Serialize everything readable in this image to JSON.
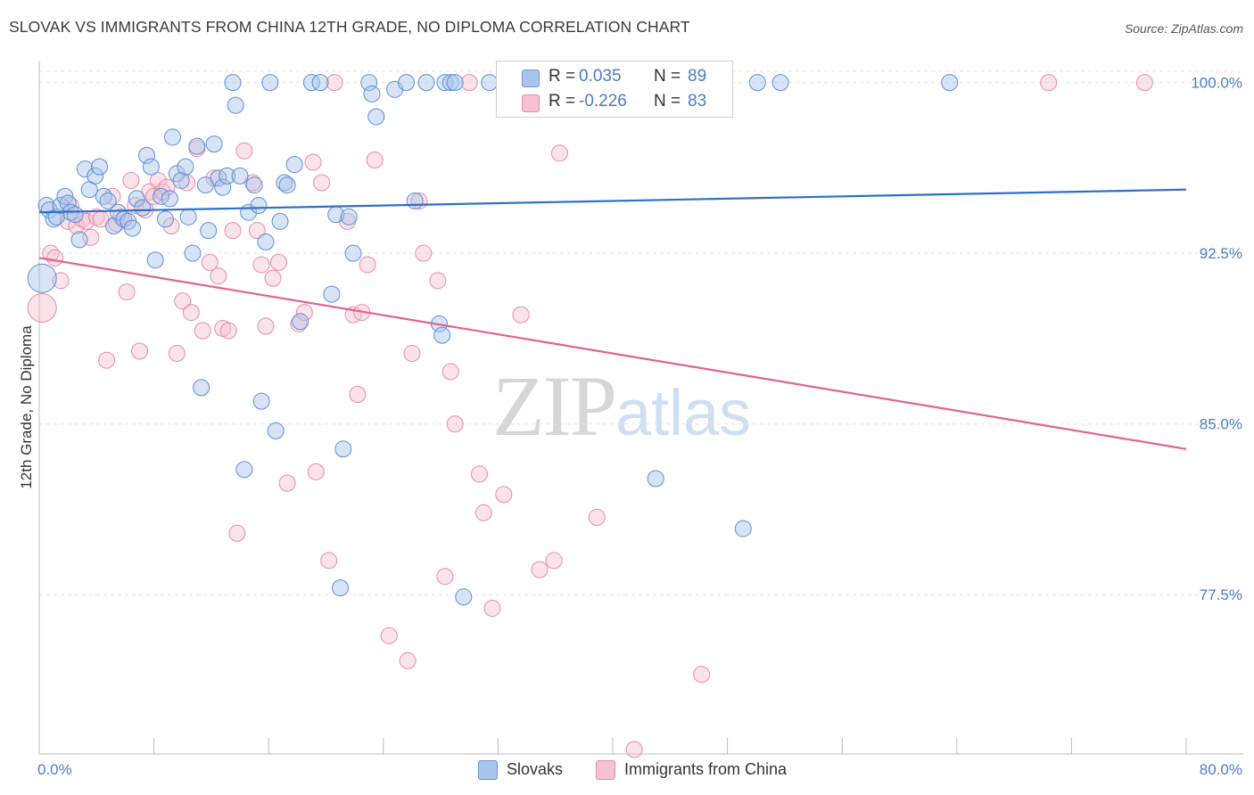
{
  "header": {
    "title": "SLOVAK VS IMMIGRANTS FROM CHINA 12TH GRADE, NO DIPLOMA CORRELATION CHART",
    "source": "Source: ZipAtlas.com"
  },
  "watermark": {
    "zip": "ZIP",
    "atlas": "atlas"
  },
  "legend": {
    "rows": [
      {
        "r_label": "R =",
        "r_value": "0.035",
        "n_label": "N =",
        "n_value": "89",
        "color": "#a9c4ea",
        "border": "#6a98d8"
      },
      {
        "r_label": "R =",
        "r_value": "-0.226",
        "n_label": "N =",
        "n_value": "83",
        "color": "#f6c1d0",
        "border": "#e88aa8"
      }
    ]
  },
  "bottom_legend": {
    "items": [
      "Slovaks",
      "Immigrants from China"
    ]
  },
  "colors": {
    "slovaks_fill": "rgba(169,196,234,0.45)",
    "slovaks_stroke": "#5b8fd6",
    "slovaks_line": "#2f6fc6",
    "china_fill": "rgba(246,193,208,0.45)",
    "china_stroke": "#e88aa8",
    "china_line": "#e0648e",
    "grid": "#e3e3e3",
    "axis": "#bbbbbb"
  },
  "chart_data": {
    "type": "scatter",
    "title": "SLOVAK VS IMMIGRANTS FROM CHINA 12TH GRADE, NO DIPLOMA CORRELATION CHART",
    "xlabel": "",
    "ylabel": "12th Grade, No Diploma",
    "xlim": [
      0,
      80
    ],
    "ylim": [
      70.5,
      101.2
    ],
    "x_tick_labels": [
      "0.0%",
      "80.0%"
    ],
    "y_ticks": [
      100.0,
      92.5,
      85.0,
      77.5
    ],
    "y_tick_labels": [
      "100.0%",
      "92.5%",
      "85.0%",
      "77.5%"
    ],
    "grid": true,
    "legend_position": "top-center",
    "series": [
      {
        "name": "Slovaks",
        "r": 0.035,
        "n": 89,
        "trend": [
          [
            0,
            94.3
          ],
          [
            80,
            95.3
          ]
        ],
        "points": [
          [
            0.2,
            91.4
          ],
          [
            0.5,
            94.6
          ],
          [
            0.7,
            94.4
          ],
          [
            1.0,
            94.0
          ],
          [
            1.2,
            94.1
          ],
          [
            1.5,
            94.6
          ],
          [
            1.8,
            95.0
          ],
          [
            2.0,
            94.7
          ],
          [
            2.2,
            94.3
          ],
          [
            2.5,
            94.2
          ],
          [
            2.8,
            93.1
          ],
          [
            3.2,
            96.2
          ],
          [
            3.5,
            95.3
          ],
          [
            3.9,
            95.9
          ],
          [
            4.2,
            96.3
          ],
          [
            4.5,
            95.0
          ],
          [
            4.8,
            94.8
          ],
          [
            5.2,
            93.7
          ],
          [
            5.5,
            94.3
          ],
          [
            5.9,
            94.0
          ],
          [
            6.2,
            93.9
          ],
          [
            6.5,
            93.6
          ],
          [
            6.8,
            94.9
          ],
          [
            7.2,
            94.5
          ],
          [
            7.5,
            96.8
          ],
          [
            7.8,
            96.3
          ],
          [
            8.1,
            92.2
          ],
          [
            8.5,
            95.0
          ],
          [
            8.8,
            94.0
          ],
          [
            9.1,
            94.9
          ],
          [
            9.3,
            97.6
          ],
          [
            9.6,
            96.0
          ],
          [
            9.9,
            95.7
          ],
          [
            10.2,
            96.3
          ],
          [
            10.4,
            94.1
          ],
          [
            10.7,
            92.5
          ],
          [
            11.0,
            97.2
          ],
          [
            11.3,
            86.6
          ],
          [
            11.6,
            95.5
          ],
          [
            11.8,
            93.5
          ],
          [
            12.2,
            97.3
          ],
          [
            12.5,
            95.8
          ],
          [
            12.8,
            95.4
          ],
          [
            13.1,
            95.9
          ],
          [
            13.5,
            100.0
          ],
          [
            13.7,
            99.0
          ],
          [
            14.0,
            95.9
          ],
          [
            14.3,
            83.0
          ],
          [
            14.6,
            94.3
          ],
          [
            15.0,
            95.5
          ],
          [
            15.3,
            94.6
          ],
          [
            15.5,
            86.0
          ],
          [
            15.8,
            93.0
          ],
          [
            16.1,
            100.0
          ],
          [
            16.5,
            84.7
          ],
          [
            16.8,
            93.9
          ],
          [
            17.1,
            95.6
          ],
          [
            17.3,
            95.5
          ],
          [
            17.8,
            96.4
          ],
          [
            18.2,
            89.5
          ],
          [
            19.0,
            100.0
          ],
          [
            19.6,
            100.0
          ],
          [
            20.4,
            90.7
          ],
          [
            20.7,
            94.2
          ],
          [
            21.2,
            83.9
          ],
          [
            21.6,
            94.1
          ],
          [
            21.9,
            92.5
          ],
          [
            21.0,
            77.8
          ],
          [
            23.0,
            100.0
          ],
          [
            23.2,
            99.5
          ],
          [
            23.5,
            98.5
          ],
          [
            24.8,
            99.7
          ],
          [
            25.6,
            100.0
          ],
          [
            26.2,
            94.8
          ],
          [
            27.0,
            100.0
          ],
          [
            27.9,
            89.4
          ],
          [
            28.1,
            88.9
          ],
          [
            28.3,
            100.0
          ],
          [
            28.7,
            100.0
          ],
          [
            29.0,
            100.0
          ],
          [
            29.6,
            77.4
          ],
          [
            31.4,
            100.0
          ],
          [
            36.3,
            100.0
          ],
          [
            38.0,
            100.0
          ],
          [
            43.0,
            82.6
          ],
          [
            49.1,
            80.4
          ],
          [
            50.1,
            100.0
          ],
          [
            51.7,
            100.0
          ],
          [
            63.5,
            100.0
          ]
        ]
      },
      {
        "name": "Immigrants from China",
        "r": -0.226,
        "n": 83,
        "trend": [
          [
            0,
            92.3
          ],
          [
            80,
            83.9
          ]
        ],
        "points": [
          [
            0.2,
            90.1
          ],
          [
            0.8,
            92.5
          ],
          [
            1.1,
            92.3
          ],
          [
            1.5,
            91.3
          ],
          [
            2.0,
            93.9
          ],
          [
            2.2,
            94.6
          ],
          [
            2.6,
            93.7
          ],
          [
            3.0,
            94.0
          ],
          [
            3.3,
            93.9
          ],
          [
            3.6,
            93.2
          ],
          [
            4.0,
            94.1
          ],
          [
            4.3,
            94.0
          ],
          [
            4.7,
            87.8
          ],
          [
            5.1,
            95.0
          ],
          [
            5.4,
            93.8
          ],
          [
            5.7,
            94.1
          ],
          [
            6.1,
            90.8
          ],
          [
            6.4,
            95.7
          ],
          [
            6.7,
            94.6
          ],
          [
            7.0,
            88.2
          ],
          [
            7.4,
            94.4
          ],
          [
            7.7,
            95.2
          ],
          [
            8.0,
            95.0
          ],
          [
            8.3,
            95.7
          ],
          [
            8.6,
            95.2
          ],
          [
            8.9,
            95.4
          ],
          [
            9.2,
            93.7
          ],
          [
            9.6,
            88.1
          ],
          [
            10.0,
            90.4
          ],
          [
            10.3,
            95.6
          ],
          [
            10.6,
            89.9
          ],
          [
            11.0,
            97.1
          ],
          [
            11.4,
            89.1
          ],
          [
            11.9,
            92.1
          ],
          [
            12.2,
            95.8
          ],
          [
            12.5,
            91.5
          ],
          [
            12.8,
            89.2
          ],
          [
            13.2,
            89.1
          ],
          [
            13.5,
            93.5
          ],
          [
            13.8,
            80.2
          ],
          [
            14.3,
            97.0
          ],
          [
            14.9,
            95.6
          ],
          [
            15.2,
            93.5
          ],
          [
            15.5,
            92.0
          ],
          [
            15.8,
            89.3
          ],
          [
            16.3,
            91.4
          ],
          [
            16.7,
            92.1
          ],
          [
            17.3,
            82.4
          ],
          [
            18.1,
            89.4
          ],
          [
            18.5,
            89.9
          ],
          [
            19.1,
            96.5
          ],
          [
            19.3,
            82.9
          ],
          [
            19.7,
            95.6
          ],
          [
            20.2,
            79.0
          ],
          [
            20.6,
            100.0
          ],
          [
            21.5,
            93.9
          ],
          [
            21.9,
            89.8
          ],
          [
            22.2,
            86.3
          ],
          [
            22.5,
            89.9
          ],
          [
            22.9,
            92.0
          ],
          [
            23.4,
            96.6
          ],
          [
            24.4,
            75.7
          ],
          [
            25.7,
            74.6
          ],
          [
            26.0,
            88.1
          ],
          [
            26.5,
            94.8
          ],
          [
            26.8,
            92.5
          ],
          [
            27.8,
            91.3
          ],
          [
            28.3,
            78.3
          ],
          [
            28.7,
            87.3
          ],
          [
            29.0,
            85.0
          ],
          [
            30.0,
            100.0
          ],
          [
            30.7,
            82.8
          ],
          [
            31.0,
            81.1
          ],
          [
            31.6,
            76.9
          ],
          [
            32.4,
            81.9
          ],
          [
            33.6,
            89.8
          ],
          [
            34.9,
            78.6
          ],
          [
            35.9,
            79.0
          ],
          [
            36.3,
            96.9
          ],
          [
            38.9,
            80.9
          ],
          [
            41.5,
            70.7
          ],
          [
            46.2,
            74.0
          ],
          [
            70.4,
            100.0
          ],
          [
            77.1,
            100.0
          ]
        ]
      }
    ]
  }
}
